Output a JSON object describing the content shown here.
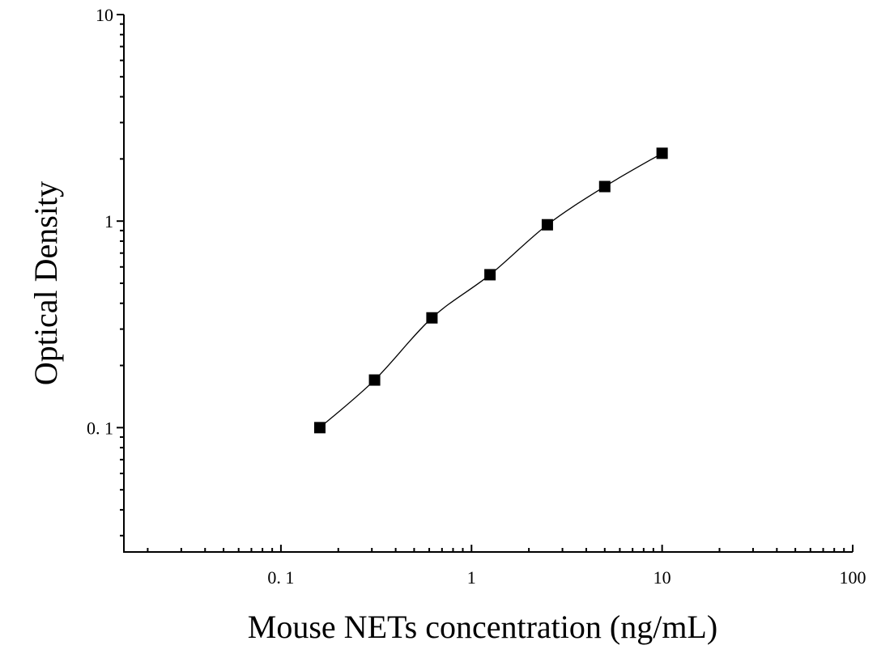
{
  "chart_data": {
    "type": "scatter",
    "title": "",
    "xlabel": "Mouse NETs concentration (ng/mL)",
    "ylabel": "Optical Density",
    "x_scale": "log",
    "y_scale": "log",
    "xlim": [
      0.015,
      100
    ],
    "ylim": [
      0.025,
      10
    ],
    "x_ticks": [
      {
        "value": 0.1,
        "label": "0. 1"
      },
      {
        "value": 1,
        "label": "1"
      },
      {
        "value": 10,
        "label": "10"
      },
      {
        "value": 100,
        "label": "100"
      }
    ],
    "y_ticks": [
      {
        "value": 0.1,
        "label": "0. 1"
      },
      {
        "value": 1,
        "label": "1"
      },
      {
        "value": 10,
        "label": "10"
      }
    ],
    "grid": false,
    "legend": "none",
    "series": [
      {
        "marker": "square",
        "color": "#000000",
        "x": [
          0.16,
          0.31,
          0.62,
          1.25,
          2.5,
          5,
          10
        ],
        "y": [
          0.1,
          0.17,
          0.34,
          0.55,
          0.96,
          1.47,
          2.13
        ],
        "fit_line": true
      }
    ]
  }
}
